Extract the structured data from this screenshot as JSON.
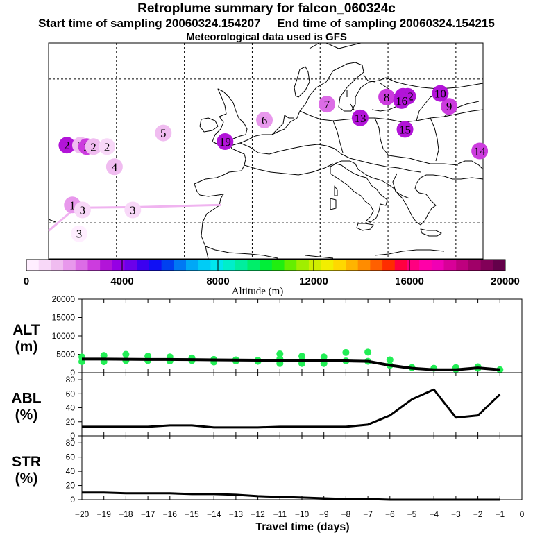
{
  "header": {
    "title": "Retroplume summary for falcon_060324c",
    "sampling_line": "Start time of sampling 20060324.154207     End time of sampling 20060324.154215",
    "met_line": "Meteorological data used is GFS"
  },
  "colors": {
    "coast": "#000000",
    "track": "#f0b4f0",
    "points": "#22ee55",
    "line": "#000000"
  },
  "chart_data": [
    {
      "type": "scatter",
      "name": "map",
      "title": "Retroplume positions",
      "plume_positions": [
        {
          "label": "1",
          "lon": -30.5,
          "lat": 37.5,
          "alt": 2000
        },
        {
          "label": "2",
          "lon": -31.3,
          "lat": 45.8,
          "alt": 3500
        },
        {
          "label": "2",
          "lon": -29.3,
          "lat": 45.8,
          "alt": 1500
        },
        {
          "label": "2",
          "lon": -28.4,
          "lat": 45.6,
          "alt": 3000
        },
        {
          "label": "2",
          "lon": -27.4,
          "lat": 45.6,
          "alt": 1500
        },
        {
          "label": "2",
          "lon": -25.4,
          "lat": 45.6,
          "alt": 1000
        },
        {
          "label": "3",
          "lon": -29.0,
          "lat": 36.8,
          "alt": 1000
        },
        {
          "label": "3",
          "lon": -21.6,
          "lat": 36.8,
          "alt": 1000
        },
        {
          "label": "3",
          "lon": -29.5,
          "lat": 33.5,
          "alt": 500
        },
        {
          "label": "4",
          "lon": -24.3,
          "lat": 42.8,
          "alt": 1500
        },
        {
          "label": "5",
          "lon": -17.1,
          "lat": 47.5,
          "alt": 1500
        },
        {
          "label": "6",
          "lon": -2.2,
          "lat": 49.3,
          "alt": 2000
        },
        {
          "label": "7",
          "lon": 7.0,
          "lat": 51.5,
          "alt": 2500
        },
        {
          "label": "8",
          "lon": 15.8,
          "lat": 52.5,
          "alt": 3000
        },
        {
          "label": "9",
          "lon": 25.0,
          "lat": 51.2,
          "alt": 3000
        },
        {
          "label": "10",
          "lon": 23.7,
          "lat": 53.0,
          "alt": 3500
        },
        {
          "label": "11",
          "lon": 18.2,
          "lat": 52.6,
          "alt": 3500
        },
        {
          "label": "12",
          "lon": 18.9,
          "lat": 52.6,
          "alt": 3500
        },
        {
          "label": "13",
          "lon": 11.9,
          "lat": 49.6,
          "alt": 3500
        },
        {
          "label": "14",
          "lon": 29.5,
          "lat": 45.0,
          "alt": 3000
        },
        {
          "label": "15",
          "lon": 18.5,
          "lat": 48.0,
          "alt": 3500
        },
        {
          "label": "16",
          "lon": 18.0,
          "lat": 52.0,
          "alt": 3500
        },
        {
          "label": "19",
          "lon": -8.0,
          "lat": 46.3,
          "alt": 3500
        }
      ],
      "track": [
        {
          "lon": -34.0,
          "lat": 33.9
        },
        {
          "lon": -30.0,
          "lat": 37.1
        },
        {
          "lon": -21.0,
          "lat": 37.2
        },
        {
          "lon": -8.6,
          "lat": 37.5
        }
      ],
      "xlim": [
        -34,
        30
      ],
      "ylim": [
        30,
        60
      ]
    },
    {
      "type": "bar",
      "name": "colorbar",
      "title": "",
      "xlabel": "Altitude (m)",
      "tick_labels": [
        "0",
        "4000",
        "8000",
        "12000",
        "16000",
        "20000"
      ],
      "xlim": [
        0,
        20000
      ],
      "colors": [
        "#ffeeff",
        "#f8d8f8",
        "#f0bcf0",
        "#e898ec",
        "#dc6ce6",
        "#cc3cde",
        "#b214d8",
        "#9600e4",
        "#6c00ea",
        "#3c00f0",
        "#1010f4",
        "#0040f0",
        "#0078f4",
        "#00a8f6",
        "#00ccf6",
        "#00e6ee",
        "#00eeca",
        "#00ee9e",
        "#00ee6a",
        "#00ee38",
        "#20ee10",
        "#64ee00",
        "#a0ee00",
        "#d0ee00",
        "#f2ee00",
        "#ffd800",
        "#ffb400",
        "#ff8c00",
        "#ff6000",
        "#ff2c00",
        "#ff0040",
        "#ff0080",
        "#ff00a8",
        "#f000b4",
        "#d80098",
        "#be007e",
        "#a00068",
        "#820058",
        "#64004a"
      ]
    },
    {
      "type": "scatter",
      "name": "altitude",
      "ylabel": "ALT\n(m)",
      "ylabel_top": "ALT",
      "ylabel_bottom": "(m)",
      "ylim": [
        0,
        20000
      ],
      "y_ticks": [
        0,
        5000,
        10000,
        15000,
        20000
      ],
      "x": [
        -20,
        -19,
        -18,
        -17,
        -16,
        -15,
        -14,
        -13,
        -12,
        -11,
        -10,
        -9,
        -8,
        -7,
        -6,
        -5,
        -4,
        -3,
        -2,
        -1
      ],
      "series": [
        {
          "name": "median altitude",
          "kind": "line",
          "values": [
            3700,
            3700,
            3650,
            3600,
            3600,
            3550,
            3500,
            3450,
            3400,
            3350,
            3350,
            3300,
            3200,
            3100,
            2000,
            1200,
            800,
            800,
            1300,
            800
          ]
        },
        {
          "name": "cluster altitudes",
          "kind": "points",
          "x": [
            -20,
            -20,
            -19,
            -19,
            -18,
            -18,
            -17,
            -17,
            -16,
            -16,
            -15,
            -15,
            -14,
            -14,
            -13,
            -13,
            -12,
            -12,
            -11,
            -11,
            -11,
            -10,
            -10,
            -10,
            -9,
            -9,
            -8,
            -8,
            -7,
            -7,
            -6,
            -6,
            -5,
            -4,
            -3,
            -3,
            -2,
            -2,
            -1
          ],
          "values": [
            4300,
            3000,
            4700,
            3000,
            5000,
            3300,
            4500,
            3300,
            4300,
            3200,
            4000,
            3300,
            3600,
            2900,
            3500,
            3200,
            3400,
            3100,
            5100,
            3800,
            2500,
            4500,
            3300,
            2500,
            4300,
            2500,
            5500,
            3200,
            5600,
            3100,
            3500,
            2000,
            1400,
            1200,
            1400,
            900,
            1600,
            1200,
            800
          ]
        }
      ]
    },
    {
      "type": "line",
      "name": "abl",
      "ylabel_top": "ABL",
      "ylabel_bottom": "(%)",
      "ylim": [
        0,
        90
      ],
      "y_ticks": [
        0,
        20,
        40,
        60,
        80
      ],
      "x": [
        -20,
        -19,
        -18,
        -17,
        -16,
        -15,
        -14,
        -13,
        -12,
        -11,
        -10,
        -9,
        -8,
        -7,
        -6,
        -5,
        -4,
        -3,
        -2,
        -1
      ],
      "values": [
        13,
        13,
        13,
        13,
        15,
        15,
        12,
        12,
        12,
        13,
        13,
        13,
        13,
        16,
        29,
        52,
        66,
        26,
        29,
        59
      ]
    },
    {
      "type": "line",
      "name": "str",
      "ylabel_top": "STR",
      "ylabel_bottom": "(%)",
      "ylim": [
        0,
        90
      ],
      "y_ticks": [
        0,
        20,
        40,
        60,
        80
      ],
      "x": [
        -20,
        -19,
        -18,
        -17,
        -16,
        -15,
        -14,
        -13,
        -12,
        -11,
        -10,
        -9,
        -8,
        -7,
        -6,
        -5,
        -4,
        -3,
        -2,
        -1
      ],
      "values": [
        10,
        10,
        9,
        9,
        9,
        8,
        8,
        7,
        5,
        4,
        3,
        2,
        1,
        1,
        0,
        0,
        0,
        0,
        0,
        0
      ]
    },
    {
      "type": "line",
      "name": "x-axis",
      "xlabel": "Travel time (days)",
      "xlim": [
        -20,
        0
      ],
      "x_ticks": [
        -20,
        -19,
        -18,
        -17,
        -16,
        -15,
        -14,
        -13,
        -12,
        -11,
        -10,
        -9,
        -8,
        -7,
        -6,
        -5,
        -4,
        -3,
        -2,
        -1,
        0
      ]
    }
  ]
}
